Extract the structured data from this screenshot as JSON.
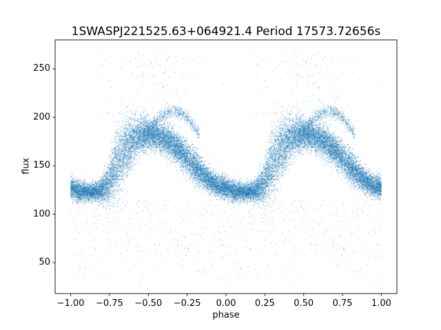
{
  "page": {
    "background": "#ffffff"
  },
  "chart_data": {
    "type": "scatter",
    "title": "1SWASPJ221525.63+064921.4 Period 17573.72656s",
    "xlabel": "phase",
    "ylabel": "flux",
    "xlim": [
      -1.1,
      1.1
    ],
    "ylim": [
      18,
      280
    ],
    "xticks": [
      -1.0,
      -0.75,
      -0.5,
      -0.25,
      0.0,
      0.25,
      0.5,
      0.75,
      1.0
    ],
    "xtick_labels": [
      "−1.00",
      "−0.75",
      "−0.50",
      "−0.25",
      "0.00",
      "0.25",
      "0.50",
      "0.75",
      "1.00"
    ],
    "yticks": [
      50,
      100,
      150,
      200,
      250
    ],
    "ytick_labels": [
      "50",
      "100",
      "150",
      "200",
      "250"
    ],
    "grid": false,
    "legend": null,
    "marker": {
      "color": "#1f77b4",
      "alpha": 0.45,
      "size": 1.1
    },
    "description": "Phase-folded SuperWASP light curve, one cycle of data duplicated over phase [-1,0] and [0,1]; flux oscillates between ~120 at minimum and ~185 at maximum with a sparse secondary arc peaking near 207 at phase 0.66 (and -0.34), plus scattered outliers from ~30 to ~268.",
    "point_generation": {
      "seed": 42,
      "n_main": 13000,
      "mean_curve": {
        "phase": [
          0.0,
          0.05,
          0.1,
          0.15,
          0.2,
          0.25,
          0.3,
          0.35,
          0.4,
          0.45,
          0.5,
          0.55,
          0.6,
          0.65,
          0.7,
          0.75,
          0.8,
          0.85,
          0.9,
          0.95,
          1.0
        ],
        "flux": [
          127,
          124,
          123,
          123,
          125,
          133,
          152,
          167,
          176,
          181,
          183,
          181,
          178,
          173,
          166,
          158,
          149,
          141,
          134,
          129,
          127
        ],
        "sigma": [
          6,
          5,
          4.5,
          4.5,
          6,
          12,
          17,
          16,
          12,
          9,
          7.5,
          7.5,
          8,
          8,
          8,
          8,
          8,
          7,
          6,
          5.5,
          6
        ]
      },
      "arc": {
        "n": 700,
        "phase_center": 0.66,
        "phase_halfwidth": 0.17,
        "peak_flux": 206,
        "edge_flux": 182,
        "sigma": 3.5
      },
      "outliers": {
        "n_low": 260,
        "low_flux": [
          55,
          115
        ],
        "n_verylow": 45,
        "verylow_flux": [
          28,
          55
        ],
        "n_high": 150,
        "high_flux": [
          196,
          268
        ],
        "high_phase_center": 0.55,
        "high_phase_sigma": 0.16
      },
      "duplicate_cycle": true
    }
  }
}
